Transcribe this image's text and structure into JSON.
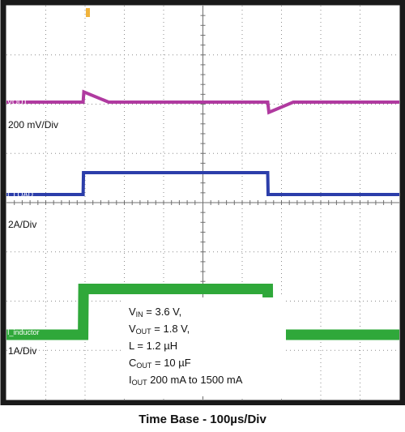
{
  "chart_data": {
    "type": "line",
    "title": "",
    "xlabel": "Time Base - 100µs/Div",
    "ylabel": "",
    "x_unit": "µs",
    "x_divisions": 10,
    "y_divisions": 8,
    "grid": true,
    "series": [
      {
        "name": "VOUT",
        "trace_label": "VOUT",
        "scale_label": "200 mV/Div",
        "color": "#b03aa0",
        "x": [
          0,
          195,
          197,
          260,
          665,
          668,
          730,
          1000
        ],
        "values": [
          0,
          0,
          -28,
          0,
          0,
          28,
          0,
          0
        ]
      },
      {
        "name": "I_LOAD",
        "trace_label": "I_LOAD",
        "scale_label": "2A/Div",
        "color": "#2c3eaa",
        "x": [
          0,
          195,
          196,
          665,
          666,
          1000
        ],
        "values": [
          0.2,
          0.2,
          1.5,
          1.5,
          0.2,
          0.2
        ]
      },
      {
        "name": "I_inductor",
        "trace_label": "I_inductor",
        "scale_label": "1A/Div",
        "color": "#2fa83a",
        "x": [
          0,
          195,
          196,
          665,
          666,
          1000
        ],
        "values": [
          0.2,
          0.2,
          1.5,
          1.5,
          0.2,
          0.2
        ]
      }
    ]
  },
  "conditions": {
    "vin": {
      "main": "V",
      "sub": "IN",
      "rest": " = 3.6 V,"
    },
    "vout": {
      "main": "V",
      "sub": "OUT",
      "rest": " = 1.8 V,"
    },
    "l": {
      "main": "L = 1.2 µH",
      "sub": "",
      "rest": ""
    },
    "cout": {
      "main": "C",
      "sub": "OUT",
      "rest": " = 10 µF"
    },
    "iout": {
      "main": "I",
      "sub": "OUT",
      "rest": " 200 mA to 1500 mA"
    }
  },
  "timebase": "Time Base - 100µs/Div",
  "colors": {
    "background": "#ffffff",
    "grid": "#8c8c8c",
    "frame": "#1a1a1a"
  }
}
